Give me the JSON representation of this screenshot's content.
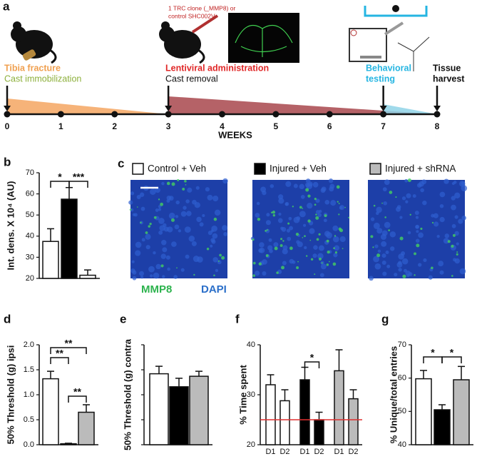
{
  "timeline": {
    "label": "a",
    "xlim": [
      0,
      8
    ],
    "xticks": [
      0,
      1,
      2,
      3,
      4,
      5,
      6,
      7,
      8
    ],
    "xlabel": "WEEKS",
    "injection_note": [
      "1 TRC clone (_MMP8) or",
      "control SHC002V"
    ],
    "periods": [
      {
        "start": 3,
        "end": 8,
        "color": "#a8474c"
      },
      {
        "start": 7,
        "end": 8,
        "color": "#8fd4e8"
      },
      {
        "start": 0,
        "end": 3,
        "color": "#f5a661"
      }
    ],
    "events": [
      {
        "week": 0,
        "lines": [
          "Tibia fracture",
          "Cast immobilization"
        ],
        "colors": [
          "#f0a050",
          "#8db03c"
        ]
      },
      {
        "week": 3,
        "lines": [
          "Lentiviral administration",
          "Cast removal"
        ],
        "colors": [
          "#e02828",
          "#111111"
        ]
      },
      {
        "week": 7,
        "lines": [
          "Behavioral",
          "testing"
        ],
        "colors": [
          "#25b5e2",
          "#25b5e2"
        ]
      },
      {
        "week": 8,
        "lines": [
          "Tissue",
          "harvest"
        ],
        "colors": [
          "#111111",
          "#111111"
        ]
      }
    ]
  },
  "images": {
    "label": "c",
    "groups": [
      {
        "name": "Control + Veh",
        "color": "#ffffff"
      },
      {
        "name": "Injured + Veh",
        "color": "#000000"
      },
      {
        "name": "Injured + shRNA",
        "color": "#bbbbbb"
      }
    ],
    "stains": [
      {
        "name": "MMP8",
        "color": "#2db34e"
      },
      {
        "name": "DAPI",
        "color": "#2b6fc9"
      }
    ]
  },
  "chart_data": [
    {
      "type": "bar",
      "label": "b",
      "ylabel": "Int. dens. X 10⁴ (AU)",
      "ylim": [
        20,
        70
      ],
      "yticks": [
        20,
        30,
        40,
        50,
        60,
        70
      ],
      "values": [
        37.5,
        57.5,
        21.5
      ],
      "errors": [
        6,
        5.5,
        2.5
      ],
      "colors": [
        "#ffffff",
        "#000000",
        "#ffffff"
      ],
      "annotations": [
        "*",
        "***"
      ]
    },
    {
      "type": "bar",
      "label": "d",
      "ylabel": "50% Threshold (g) ipsi",
      "ylim": [
        0,
        2
      ],
      "yticks": [
        {
          "value": 0,
          "label": "0.0"
        },
        0.5,
        {
          "value": 1,
          "label": "1.0"
        },
        1.5,
        {
          "value": 2,
          "label": "2.0"
        }
      ],
      "values": [
        1.32,
        0.02,
        0.65
      ],
      "errors": [
        0.15,
        0.01,
        0.15
      ],
      "colors": [
        "#ffffff",
        "#000000",
        "#bbbbbb"
      ],
      "annotations": [
        "**",
        "**",
        "**"
      ]
    },
    {
      "type": "bar",
      "label": "e",
      "ylabel": "50% Threshold (g) contra",
      "ylim": [
        0,
        2
      ],
      "yticks": [
        0,
        0.5,
        1,
        1.5,
        2
      ],
      "tick_labels": false,
      "values": [
        1.42,
        1.16,
        1.37
      ],
      "errors": [
        0.15,
        0.17,
        0.1
      ],
      "colors": [
        "#ffffff",
        "#000000",
        "#bbbbbb"
      ]
    },
    {
      "type": "bar",
      "label": "f",
      "ylabel": "% Time spent",
      "ylim": [
        20,
        40
      ],
      "yticks": [
        20,
        30,
        40
      ],
      "categories": [
        "D1",
        "D2",
        "D1",
        "D2",
        "D1",
        "D2"
      ],
      "values": [
        32,
        28.8,
        33,
        25,
        34.8,
        29.2
      ],
      "errors": [
        2,
        2.2,
        2.5,
        1.5,
        4.2,
        1.8
      ],
      "colors": [
        "#ffffff",
        "#ffffff",
        "#000000",
        "#000000",
        "#bbbbbb",
        "#bbbbbb"
      ],
      "reference_line": {
        "value": 25,
        "color": "#e03030"
      },
      "annotations": [
        "*"
      ]
    },
    {
      "type": "bar",
      "label": "g",
      "ylabel": "% Unique/total entries",
      "ylim": [
        40,
        70
      ],
      "yticks": [
        40,
        50,
        60,
        70
      ],
      "values": [
        59.8,
        50.5,
        59.5
      ],
      "errors": [
        2.5,
        1.5,
        4
      ],
      "colors": [
        "#ffffff",
        "#000000",
        "#bbbbbb"
      ],
      "annotations": [
        "*",
        "*"
      ]
    }
  ]
}
